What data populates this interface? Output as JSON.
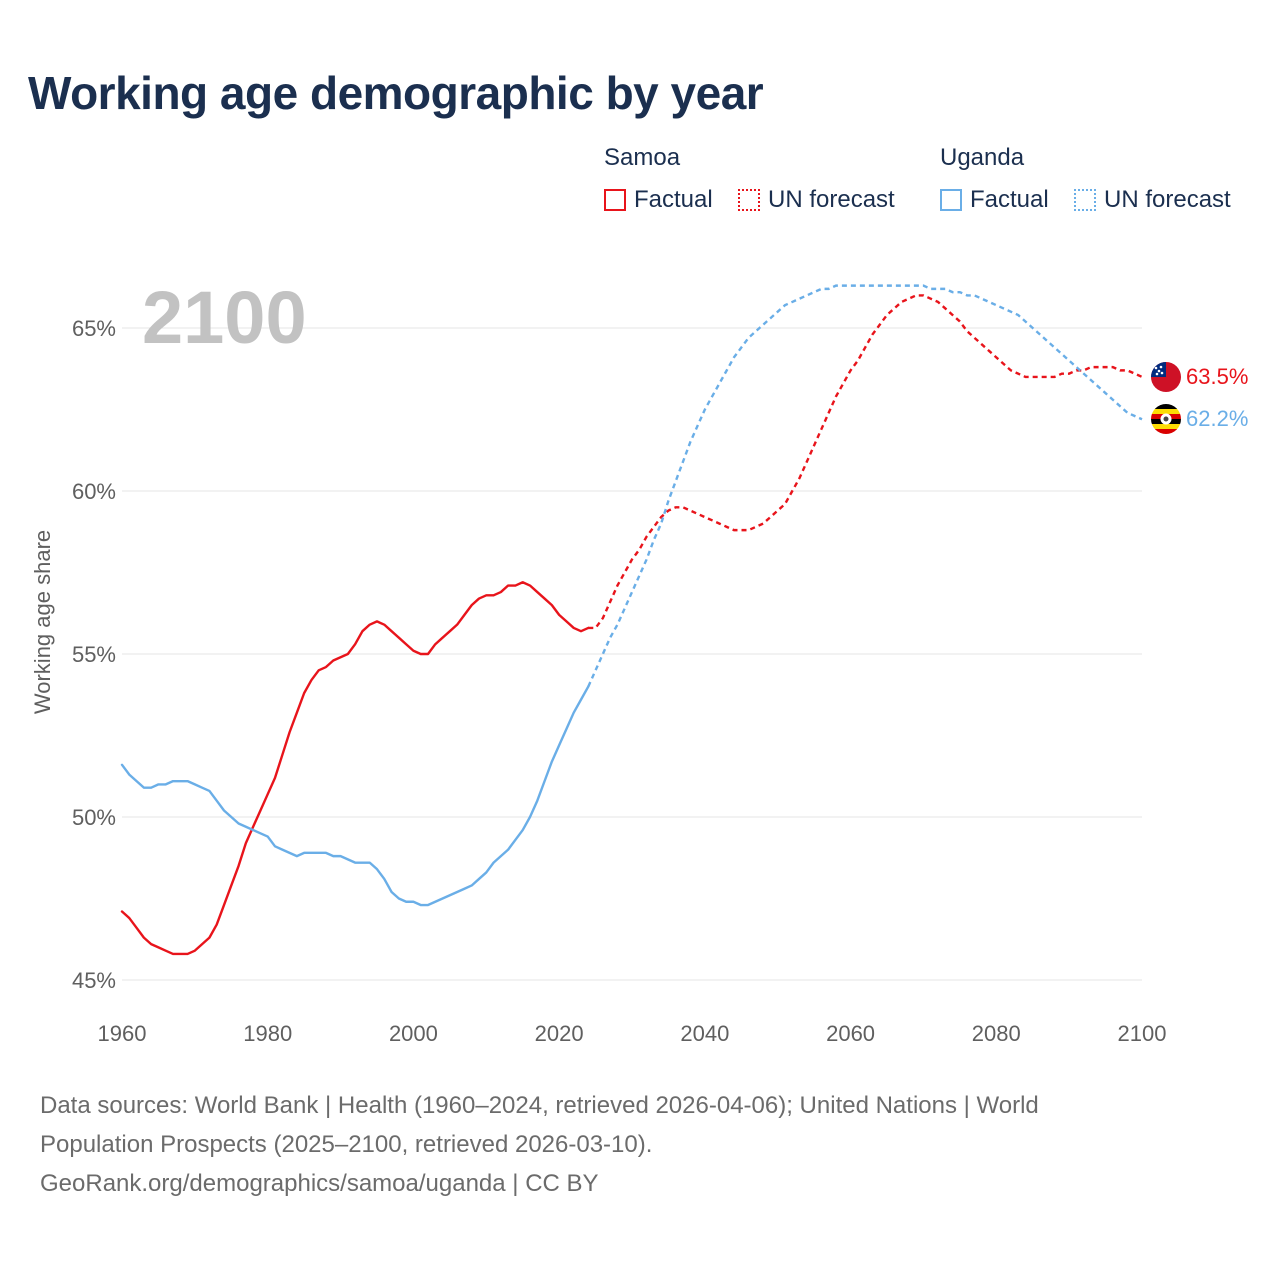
{
  "title": "Working age demographic by year",
  "legend": {
    "groups": [
      {
        "name": "Samoa",
        "color": "#e8141b",
        "factual": "Factual",
        "forecast": "UN forecast"
      },
      {
        "name": "Uganda",
        "color": "#6aaee7",
        "factual": "Factual",
        "forecast": "UN forecast"
      }
    ]
  },
  "footer": {
    "line1": "Data sources: World Bank | Health (1960–2024, retrieved 2026-04-06); United Nations | World",
    "line2": "Population Prospects (2025–2100, retrieved 2026-03-10).",
    "line3": "GeoRank.org/demographics/samoa/uganda | CC BY"
  },
  "chart_data": {
    "type": "line",
    "current_year_label": "2100",
    "ylabel": "Working age share",
    "xlim": [
      1960,
      2100
    ],
    "ylim": [
      44.6,
      66.7
    ],
    "x_ticks": [
      1960,
      1980,
      2000,
      2020,
      2040,
      2060,
      2080,
      2100
    ],
    "y_ticks": [
      45,
      50,
      55,
      60,
      65
    ],
    "y_tick_labels": [
      "45%",
      "50%",
      "55%",
      "60%",
      "65%"
    ],
    "grid": true,
    "forecast_start_year": 2024,
    "series": [
      {
        "name": "Samoa",
        "color": "#e8141b",
        "flag": "samoa-flag",
        "end_label": "63.5%",
        "points": [
          [
            1960,
            47.1
          ],
          [
            1961,
            46.9
          ],
          [
            1962,
            46.6
          ],
          [
            1963,
            46.3
          ],
          [
            1964,
            46.1
          ],
          [
            1965,
            46.0
          ],
          [
            1966,
            45.9
          ],
          [
            1967,
            45.8
          ],
          [
            1968,
            45.8
          ],
          [
            1969,
            45.8
          ],
          [
            1970,
            45.9
          ],
          [
            1971,
            46.1
          ],
          [
            1972,
            46.3
          ],
          [
            1973,
            46.7
          ],
          [
            1974,
            47.3
          ],
          [
            1975,
            47.9
          ],
          [
            1976,
            48.5
          ],
          [
            1977,
            49.2
          ],
          [
            1978,
            49.7
          ],
          [
            1979,
            50.2
          ],
          [
            1980,
            50.7
          ],
          [
            1981,
            51.2
          ],
          [
            1982,
            51.9
          ],
          [
            1983,
            52.6
          ],
          [
            1984,
            53.2
          ],
          [
            1985,
            53.8
          ],
          [
            1986,
            54.2
          ],
          [
            1987,
            54.5
          ],
          [
            1988,
            54.6
          ],
          [
            1989,
            54.8
          ],
          [
            1990,
            54.9
          ],
          [
            1991,
            55.0
          ],
          [
            1992,
            55.3
          ],
          [
            1993,
            55.7
          ],
          [
            1994,
            55.9
          ],
          [
            1995,
            56.0
          ],
          [
            1996,
            55.9
          ],
          [
            1997,
            55.7
          ],
          [
            1998,
            55.5
          ],
          [
            1999,
            55.3
          ],
          [
            2000,
            55.1
          ],
          [
            2001,
            55.0
          ],
          [
            2002,
            55.0
          ],
          [
            2003,
            55.3
          ],
          [
            2004,
            55.5
          ],
          [
            2005,
            55.7
          ],
          [
            2006,
            55.9
          ],
          [
            2007,
            56.2
          ],
          [
            2008,
            56.5
          ],
          [
            2009,
            56.7
          ],
          [
            2010,
            56.8
          ],
          [
            2011,
            56.8
          ],
          [
            2012,
            56.9
          ],
          [
            2013,
            57.1
          ],
          [
            2014,
            57.1
          ],
          [
            2015,
            57.2
          ],
          [
            2016,
            57.1
          ],
          [
            2017,
            56.9
          ],
          [
            2018,
            56.7
          ],
          [
            2019,
            56.5
          ],
          [
            2020,
            56.2
          ],
          [
            2021,
            56.0
          ],
          [
            2022,
            55.8
          ],
          [
            2023,
            55.7
          ],
          [
            2024,
            55.8
          ],
          [
            2025,
            55.8
          ],
          [
            2026,
            56.1
          ],
          [
            2027,
            56.6
          ],
          [
            2028,
            57.1
          ],
          [
            2029,
            57.5
          ],
          [
            2030,
            57.9
          ],
          [
            2031,
            58.2
          ],
          [
            2032,
            58.6
          ],
          [
            2033,
            58.9
          ],
          [
            2034,
            59.2
          ],
          [
            2035,
            59.4
          ],
          [
            2036,
            59.5
          ],
          [
            2037,
            59.5
          ],
          [
            2038,
            59.4
          ],
          [
            2039,
            59.3
          ],
          [
            2040,
            59.2
          ],
          [
            2041,
            59.1
          ],
          [
            2042,
            59.0
          ],
          [
            2043,
            58.9
          ],
          [
            2044,
            58.8
          ],
          [
            2045,
            58.8
          ],
          [
            2046,
            58.8
          ],
          [
            2047,
            58.9
          ],
          [
            2048,
            59.0
          ],
          [
            2049,
            59.2
          ],
          [
            2050,
            59.4
          ],
          [
            2051,
            59.6
          ],
          [
            2052,
            60.0
          ],
          [
            2053,
            60.4
          ],
          [
            2054,
            60.9
          ],
          [
            2055,
            61.4
          ],
          [
            2056,
            61.9
          ],
          [
            2057,
            62.4
          ],
          [
            2058,
            62.9
          ],
          [
            2059,
            63.3
          ],
          [
            2060,
            63.7
          ],
          [
            2061,
            64.0
          ],
          [
            2062,
            64.4
          ],
          [
            2063,
            64.8
          ],
          [
            2064,
            65.1
          ],
          [
            2065,
            65.4
          ],
          [
            2066,
            65.6
          ],
          [
            2067,
            65.8
          ],
          [
            2068,
            65.9
          ],
          [
            2069,
            66.0
          ],
          [
            2070,
            66.0
          ],
          [
            2071,
            65.9
          ],
          [
            2072,
            65.8
          ],
          [
            2073,
            65.6
          ],
          [
            2074,
            65.4
          ],
          [
            2075,
            65.2
          ],
          [
            2076,
            64.9
          ],
          [
            2077,
            64.7
          ],
          [
            2078,
            64.5
          ],
          [
            2079,
            64.3
          ],
          [
            2080,
            64.1
          ],
          [
            2081,
            63.9
          ],
          [
            2082,
            63.7
          ],
          [
            2083,
            63.6
          ],
          [
            2084,
            63.5
          ],
          [
            2085,
            63.5
          ],
          [
            2086,
            63.5
          ],
          [
            2087,
            63.5
          ],
          [
            2088,
            63.5
          ],
          [
            2089,
            63.6
          ],
          [
            2090,
            63.6
          ],
          [
            2091,
            63.7
          ],
          [
            2092,
            63.7
          ],
          [
            2093,
            63.8
          ],
          [
            2094,
            63.8
          ],
          [
            2095,
            63.8
          ],
          [
            2096,
            63.8
          ],
          [
            2097,
            63.7
          ],
          [
            2098,
            63.7
          ],
          [
            2099,
            63.6
          ],
          [
            2100,
            63.5
          ]
        ]
      },
      {
        "name": "Uganda",
        "color": "#6aaee7",
        "flag": "uganda-flag",
        "end_label": "62.2%",
        "points": [
          [
            1960,
            51.6
          ],
          [
            1961,
            51.3
          ],
          [
            1962,
            51.1
          ],
          [
            1963,
            50.9
          ],
          [
            1964,
            50.9
          ],
          [
            1965,
            51.0
          ],
          [
            1966,
            51.0
          ],
          [
            1967,
            51.1
          ],
          [
            1968,
            51.1
          ],
          [
            1969,
            51.1
          ],
          [
            1970,
            51.0
          ],
          [
            1971,
            50.9
          ],
          [
            1972,
            50.8
          ],
          [
            1973,
            50.5
          ],
          [
            1974,
            50.2
          ],
          [
            1975,
            50.0
          ],
          [
            1976,
            49.8
          ],
          [
            1977,
            49.7
          ],
          [
            1978,
            49.6
          ],
          [
            1979,
            49.5
          ],
          [
            1980,
            49.4
          ],
          [
            1981,
            49.1
          ],
          [
            1982,
            49.0
          ],
          [
            1983,
            48.9
          ],
          [
            1984,
            48.8
          ],
          [
            1985,
            48.9
          ],
          [
            1986,
            48.9
          ],
          [
            1987,
            48.9
          ],
          [
            1988,
            48.9
          ],
          [
            1989,
            48.8
          ],
          [
            1990,
            48.8
          ],
          [
            1991,
            48.7
          ],
          [
            1992,
            48.6
          ],
          [
            1993,
            48.6
          ],
          [
            1994,
            48.6
          ],
          [
            1995,
            48.4
          ],
          [
            1996,
            48.1
          ],
          [
            1997,
            47.7
          ],
          [
            1998,
            47.5
          ],
          [
            1999,
            47.4
          ],
          [
            2000,
            47.4
          ],
          [
            2001,
            47.3
          ],
          [
            2002,
            47.3
          ],
          [
            2003,
            47.4
          ],
          [
            2004,
            47.5
          ],
          [
            2005,
            47.6
          ],
          [
            2006,
            47.7
          ],
          [
            2007,
            47.8
          ],
          [
            2008,
            47.9
          ],
          [
            2009,
            48.1
          ],
          [
            2010,
            48.3
          ],
          [
            2011,
            48.6
          ],
          [
            2012,
            48.8
          ],
          [
            2013,
            49.0
          ],
          [
            2014,
            49.3
          ],
          [
            2015,
            49.6
          ],
          [
            2016,
            50.0
          ],
          [
            2017,
            50.5
          ],
          [
            2018,
            51.1
          ],
          [
            2019,
            51.7
          ],
          [
            2020,
            52.2
          ],
          [
            2021,
            52.7
          ],
          [
            2022,
            53.2
          ],
          [
            2023,
            53.6
          ],
          [
            2024,
            54.0
          ],
          [
            2025,
            54.5
          ],
          [
            2026,
            55.0
          ],
          [
            2027,
            55.5
          ],
          [
            2028,
            55.9
          ],
          [
            2029,
            56.4
          ],
          [
            2030,
            56.9
          ],
          [
            2031,
            57.4
          ],
          [
            2032,
            57.9
          ],
          [
            2033,
            58.5
          ],
          [
            2034,
            59.0
          ],
          [
            2035,
            59.7
          ],
          [
            2036,
            60.3
          ],
          [
            2037,
            60.9
          ],
          [
            2038,
            61.5
          ],
          [
            2039,
            62.0
          ],
          [
            2040,
            62.5
          ],
          [
            2041,
            62.9
          ],
          [
            2042,
            63.3
          ],
          [
            2043,
            63.7
          ],
          [
            2044,
            64.1
          ],
          [
            2045,
            64.4
          ],
          [
            2046,
            64.7
          ],
          [
            2047,
            64.9
          ],
          [
            2048,
            65.1
          ],
          [
            2049,
            65.3
          ],
          [
            2050,
            65.5
          ],
          [
            2051,
            65.7
          ],
          [
            2052,
            65.8
          ],
          [
            2053,
            65.9
          ],
          [
            2054,
            66.0
          ],
          [
            2055,
            66.1
          ],
          [
            2056,
            66.2
          ],
          [
            2057,
            66.2
          ],
          [
            2058,
            66.3
          ],
          [
            2059,
            66.3
          ],
          [
            2060,
            66.3
          ],
          [
            2061,
            66.3
          ],
          [
            2062,
            66.3
          ],
          [
            2063,
            66.3
          ],
          [
            2064,
            66.3
          ],
          [
            2065,
            66.3
          ],
          [
            2066,
            66.3
          ],
          [
            2067,
            66.3
          ],
          [
            2068,
            66.3
          ],
          [
            2069,
            66.3
          ],
          [
            2070,
            66.3
          ],
          [
            2071,
            66.2
          ],
          [
            2072,
            66.2
          ],
          [
            2073,
            66.2
          ],
          [
            2074,
            66.1
          ],
          [
            2075,
            66.1
          ],
          [
            2076,
            66.0
          ],
          [
            2077,
            66.0
          ],
          [
            2078,
            65.9
          ],
          [
            2079,
            65.8
          ],
          [
            2080,
            65.7
          ],
          [
            2081,
            65.6
          ],
          [
            2082,
            65.5
          ],
          [
            2083,
            65.4
          ],
          [
            2084,
            65.2
          ],
          [
            2085,
            65.0
          ],
          [
            2086,
            64.8
          ],
          [
            2087,
            64.6
          ],
          [
            2088,
            64.4
          ],
          [
            2089,
            64.2
          ],
          [
            2090,
            64.0
          ],
          [
            2091,
            63.8
          ],
          [
            2092,
            63.6
          ],
          [
            2093,
            63.4
          ],
          [
            2094,
            63.2
          ],
          [
            2095,
            63.0
          ],
          [
            2096,
            62.8
          ],
          [
            2097,
            62.6
          ],
          [
            2098,
            62.4
          ],
          [
            2099,
            62.3
          ],
          [
            2100,
            62.2
          ]
        ]
      }
    ]
  }
}
